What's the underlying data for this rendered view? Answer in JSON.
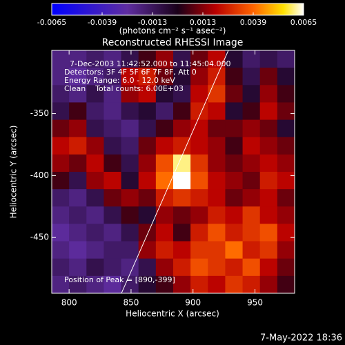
{
  "chart_data": {
    "type": "heatmap",
    "title": "Reconstructed RHESSI Image",
    "colorbar_label": "(photons cm⁻² s⁻¹ asec⁻²)",
    "zlim": [
      -0.0065,
      0.0065
    ],
    "zticks": [
      -0.0065,
      -0.0039,
      -0.0013,
      0.0013,
      0.0039,
      0.0065
    ],
    "xlabel": "Heliocentric X (arcsec)",
    "ylabel": "Heliocentric Y (arcsec)",
    "xlim": [
      786,
      982
    ],
    "ylim": [
      -495,
      -299
    ],
    "xticks": [
      800,
      850,
      900,
      950
    ],
    "yticks": [
      -350,
      -400,
      -450
    ],
    "annotations": [
      "7-Dec-2003 11:42:52.000 to 11:45:04.000",
      "Detectors: 3F 4F 5F 6F 7F 8F, Att 0",
      "Energy Range: 6.0 - 12.0 keV",
      "Clean    Total counts: 6.00E+03"
    ],
    "peak_label": "Position of Peak = [890,-399]",
    "timestamp": "7-May-2022 18:36",
    "x": [
      793,
      807,
      821,
      835,
      849,
      863,
      877,
      891,
      905,
      919,
      933,
      947,
      961,
      975
    ],
    "y": [
      -306,
      -320,
      -334,
      -348,
      -362,
      -376,
      -390,
      -404,
      -418,
      -432,
      -446,
      -460,
      -474,
      -488
    ],
    "values": [
      [
        -0.002,
        -0.002,
        -0.0015,
        -0.002,
        -0.001,
        0.0005,
        0.0015,
        -0.001,
        0.001,
        0.002,
        -0.0005,
        -0.0015,
        -0.001,
        -0.0015
      ],
      [
        -0.002,
        -0.0025,
        -0.002,
        -0.0015,
        0.002,
        0.0025,
        0.001,
        -0.0005,
        0.0015,
        0.0025,
        0.0005,
        -0.001,
        0.001,
        -0.0005
      ],
      [
        -0.0015,
        -0.002,
        -0.001,
        -0.002,
        0.0015,
        0.002,
        -0.0005,
        -0.001,
        0.002,
        0.003,
        0.001,
        -0.0005,
        0.0015,
        0.0005
      ],
      [
        -0.001,
        0.0005,
        -0.0015,
        -0.002,
        -0.001,
        -0.0005,
        -0.0015,
        0.0005,
        0.0025,
        0.002,
        -0.0005,
        0.0005,
        0.002,
        0.001
      ],
      [
        0.001,
        0.0015,
        -0.001,
        -0.0015,
        -0.002,
        -0.001,
        0.0005,
        0.0015,
        0.002,
        0.001,
        0.001,
        0.0015,
        0.001,
        -0.0005
      ],
      [
        0.002,
        0.0025,
        0.0015,
        -0.001,
        -0.0015,
        0.001,
        0.002,
        0.0025,
        0.002,
        0.0015,
        0.0005,
        0.002,
        0.0015,
        0.001
      ],
      [
        0.0015,
        0.001,
        0.002,
        0.0005,
        -0.001,
        0.0015,
        0.0035,
        0.006,
        0.003,
        0.0015,
        0.001,
        0.0015,
        0.002,
        0.0015
      ],
      [
        0.0005,
        -0.001,
        0.0015,
        0.002,
        -0.0005,
        0.002,
        0.004,
        0.0065,
        0.0035,
        0.002,
        0.0015,
        0.001,
        0.0025,
        0.002
      ],
      [
        -0.0015,
        -0.002,
        -0.001,
        0.001,
        0.0015,
        0.001,
        0.0025,
        0.003,
        0.0025,
        0.002,
        0.001,
        0.0015,
        0.002,
        0.001
      ],
      [
        -0.002,
        -0.0015,
        -0.002,
        -0.001,
        0.0005,
        -0.0005,
        0.0015,
        0.001,
        0.0015,
        0.0025,
        0.002,
        0.003,
        0.002,
        0.0015
      ],
      [
        -0.0025,
        -0.002,
        -0.0015,
        -0.002,
        -0.001,
        0.001,
        0.002,
        0.0005,
        0.0025,
        0.0035,
        0.0025,
        0.003,
        0.0035,
        0.002
      ],
      [
        -0.002,
        -0.0025,
        -0.002,
        -0.0015,
        -0.0015,
        0.0015,
        0.0025,
        0.002,
        0.003,
        0.003,
        0.004,
        0.0025,
        0.003,
        0.0015
      ],
      [
        -0.0015,
        -0.002,
        -0.001,
        -0.0015,
        -0.002,
        -0.001,
        0.0015,
        0.0025,
        0.0035,
        0.003,
        0.0025,
        0.0035,
        0.002,
        0.001
      ],
      [
        -0.002,
        -0.0015,
        -0.002,
        -0.0025,
        -0.0015,
        -0.0005,
        0.0005,
        0.0015,
        0.0025,
        0.002,
        0.003,
        0.0025,
        0.0015,
        0.0005
      ]
    ]
  }
}
